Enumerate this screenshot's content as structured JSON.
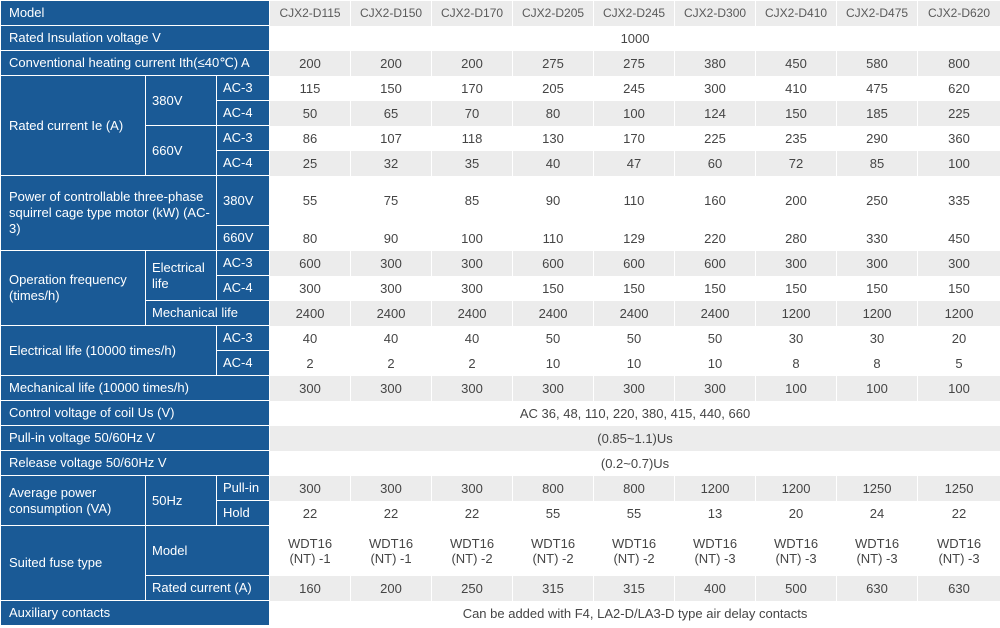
{
  "models": [
    "CJX2-D115",
    "CJX2-D150",
    "CJX2-D170",
    "CJX2-D205",
    "CJX2-D245",
    "CJX2-D300",
    "CJX2-D410",
    "CJX2-D475",
    "CJX2-D620"
  ],
  "labels": {
    "model": "Model",
    "insulation": "Rated Insulation voltage V",
    "heating": "Conventional heating current  Ith(≤40℃) A",
    "rated_current": "Rated current Ie (A)",
    "v380": "380V",
    "v660": "660V",
    "ac3": "AC-3",
    "ac4": "AC-4",
    "power": "Power of controllable three-phase squirrel cage type motor (kW) (AC-3)",
    "op_freq": "Operation frequency (times/h)",
    "electrical_life_short": "Electrical life",
    "mechanical_life_short": "Mechanical life",
    "electrical_life": "Electrical life (10000 times/h)",
    "mechanical_life": "Mechanical life (10000 times/h)",
    "coil_voltage": "Control voltage of coil Us (V)",
    "pullin_voltage": "Pull-in voltage 50/60Hz V",
    "release_voltage": "Release voltage 50/60Hz V",
    "avg_power": "Average power consumption (VA)",
    "hz50": "50Hz",
    "pullin": "Pull-in",
    "hold": "Hold",
    "fuse": "Suited fuse type",
    "fuse_model": "Model",
    "fuse_current": "Rated current (A)",
    "aux": "Auxiliary contacts"
  },
  "spans": {
    "insulation": "1000",
    "coil_voltage": "AC 36, 48, 110, 220, 380, 415, 440, 660",
    "pullin_voltage": "(0.85~1.1)Us",
    "release_voltage": "(0.2~0.7)Us",
    "aux": "Can be added with F4, LA2-D/LA3-D type air delay contacts"
  },
  "rows": {
    "heating": [
      "200",
      "200",
      "200",
      "275",
      "275",
      "380",
      "450",
      "580",
      "800"
    ],
    "rc_380_ac3": [
      "115",
      "150",
      "170",
      "205",
      "245",
      "300",
      "410",
      "475",
      "620"
    ],
    "rc_380_ac4": [
      "50",
      "65",
      "70",
      "80",
      "100",
      "124",
      "150",
      "185",
      "225"
    ],
    "rc_660_ac3": [
      "86",
      "107",
      "118",
      "130",
      "170",
      "225",
      "235",
      "290",
      "360"
    ],
    "rc_660_ac4": [
      "25",
      "32",
      "35",
      "40",
      "47",
      "60",
      "72",
      "85",
      "100"
    ],
    "power_380": [
      "55",
      "75",
      "85",
      "90",
      "110",
      "160",
      "200",
      "250",
      "335"
    ],
    "power_660": [
      "80",
      "90",
      "100",
      "110",
      "129",
      "220",
      "280",
      "330",
      "450"
    ],
    "of_el_ac3": [
      "600",
      "300",
      "300",
      "600",
      "600",
      "600",
      "300",
      "300",
      "300"
    ],
    "of_el_ac4": [
      "300",
      "300",
      "300",
      "150",
      "150",
      "150",
      "150",
      "150",
      "150"
    ],
    "of_mech": [
      "2400",
      "2400",
      "2400",
      "2400",
      "2400",
      "2400",
      "1200",
      "1200",
      "1200"
    ],
    "el_ac3": [
      "40",
      "40",
      "40",
      "50",
      "50",
      "50",
      "30",
      "30",
      "20"
    ],
    "el_ac4": [
      "2",
      "2",
      "2",
      "10",
      "10",
      "10",
      "8",
      "8",
      "5"
    ],
    "mech_life": [
      "300",
      "300",
      "300",
      "300",
      "300",
      "300",
      "100",
      "100",
      "100"
    ],
    "ap_pullin": [
      "300",
      "300",
      "300",
      "800",
      "800",
      "1200",
      "1200",
      "1250",
      "1250"
    ],
    "ap_hold": [
      "22",
      "22",
      "22",
      "55",
      "55",
      "13",
      "20",
      "24",
      "22"
    ],
    "fuse_model_l1": [
      "WDT16",
      "WDT16",
      "WDT16",
      "WDT16",
      "WDT16",
      "WDT16",
      "WDT16",
      "WDT16",
      "WDT16"
    ],
    "fuse_model_l2": [
      "(NT) -1",
      "(NT) -1",
      "(NT) -2",
      "(NT) -2",
      "(NT) -2",
      "(NT) -3",
      "(NT) -3",
      "(NT) -3",
      "(NT) -3"
    ],
    "fuse_current": [
      "160",
      "200",
      "250",
      "315",
      "315",
      "400",
      "500",
      "630",
      "630"
    ]
  },
  "colors": {
    "header_blue": "#1a5a96",
    "row_gray": "#ececec",
    "row_white": "#ffffff",
    "text": "#454545"
  }
}
